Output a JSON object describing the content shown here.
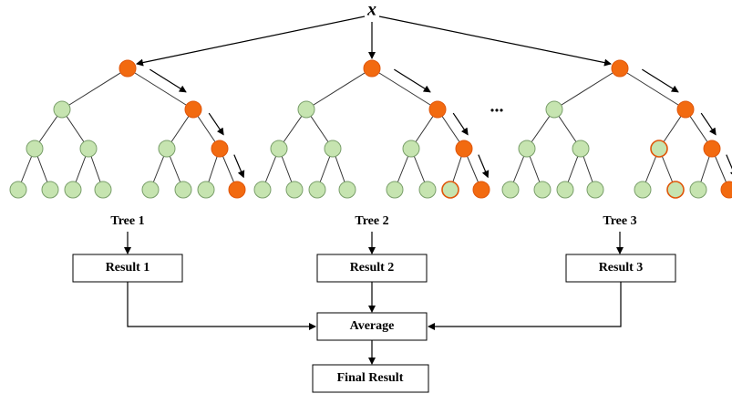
{
  "input": {
    "label": "x"
  },
  "ellipsis": "...",
  "trees": [
    {
      "label": "Tree 1",
      "result": "Result 1"
    },
    {
      "label": "Tree 2",
      "result": "Result 2"
    },
    {
      "label": "Tree 3",
      "result": "Result 3"
    }
  ],
  "average": "Average",
  "final": "Final Result"
}
